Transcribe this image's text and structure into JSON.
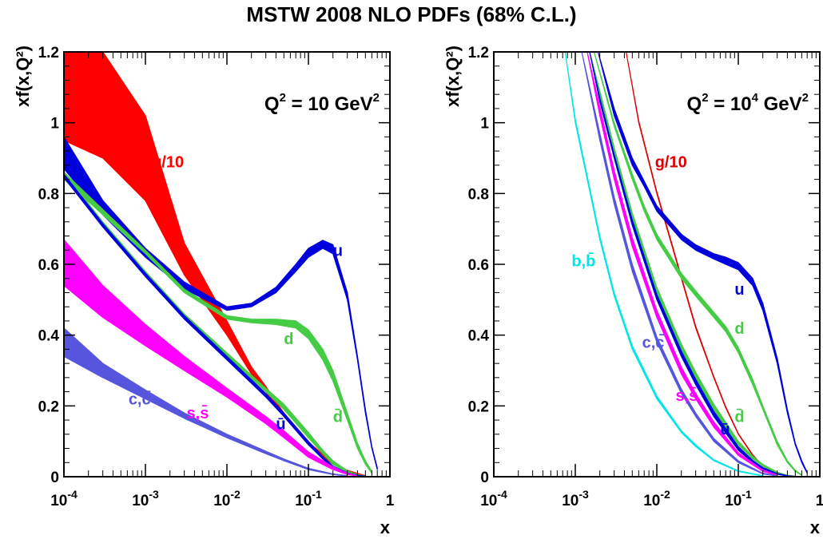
{
  "figure_title": "MSTW 2008 NLO PDFs (68% C.L.)",
  "chart_data": [
    {
      "type": "line",
      "xscale": "log",
      "xlim": [
        0.0001,
        1
      ],
      "ylim": [
        0,
        1.2
      ],
      "xlabel": "x",
      "ylabel": "xf(x,Q²)",
      "annotation": "Q² = 10 GeV²",
      "annotation_parts": {
        "base": "Q",
        "exp1": "2",
        "mid": " = 10 GeV",
        "exp2": "2"
      },
      "yticks": [
        "0",
        "0.2",
        "0.4",
        "0.6",
        "0.8",
        "1",
        "1.2"
      ],
      "xticks": [
        {
          "base": "10",
          "exp": "-4"
        },
        {
          "base": "10",
          "exp": "-3"
        },
        {
          "base": "10",
          "exp": "-2"
        },
        {
          "base": "10",
          "exp": "-1"
        },
        {
          "base": "1",
          "exp": ""
        }
      ],
      "series": [
        {
          "name": "g/10",
          "color": "#ff0000",
          "label_x": 0.0012,
          "label_y": 0.89,
          "x": [
            0.0001,
            0.0003,
            0.001,
            0.003,
            0.01,
            0.02,
            0.03,
            0.05,
            0.1,
            0.2,
            0.3,
            0.5
          ],
          "y_lo": [
            0.95,
            0.9,
            0.78,
            0.57,
            0.4,
            0.29,
            0.24,
            0.17,
            0.09,
            0.035,
            0.015,
            0.002
          ],
          "y_hi": [
            1.22,
            1.22,
            1.02,
            0.66,
            0.44,
            0.31,
            0.255,
            0.18,
            0.098,
            0.04,
            0.018,
            0.003
          ]
        },
        {
          "name": "u",
          "color": "#0000dd",
          "label_x": 0.2,
          "label_y": 0.64,
          "x": [
            0.0001,
            0.0003,
            0.001,
            0.003,
            0.01,
            0.02,
            0.04,
            0.07,
            0.1,
            0.15,
            0.2,
            0.3,
            0.4,
            0.5,
            0.6,
            0.7
          ],
          "y_lo": [
            0.87,
            0.74,
            0.62,
            0.53,
            0.47,
            0.48,
            0.52,
            0.58,
            0.62,
            0.645,
            0.63,
            0.5,
            0.33,
            0.18,
            0.08,
            0.02
          ],
          "y_hi": [
            0.96,
            0.78,
            0.645,
            0.55,
            0.48,
            0.49,
            0.535,
            0.6,
            0.645,
            0.668,
            0.655,
            0.52,
            0.34,
            0.19,
            0.085,
            0.025
          ]
        },
        {
          "name": "d",
          "color": "#44cc44",
          "label_x": 0.05,
          "label_y": 0.39,
          "x": [
            0.0001,
            0.0003,
            0.001,
            0.003,
            0.01,
            0.02,
            0.04,
            0.07,
            0.1,
            0.15,
            0.2,
            0.3,
            0.4,
            0.5,
            0.6
          ],
          "y_lo": [
            0.84,
            0.74,
            0.63,
            0.52,
            0.445,
            0.435,
            0.43,
            0.42,
            0.39,
            0.33,
            0.27,
            0.16,
            0.08,
            0.035,
            0.01
          ],
          "y_hi": [
            0.86,
            0.755,
            0.64,
            0.53,
            0.455,
            0.445,
            0.445,
            0.44,
            0.415,
            0.36,
            0.3,
            0.18,
            0.095,
            0.045,
            0.015
          ]
        },
        {
          "name": "d̄",
          "color": "#44cc44",
          "label_x": 0.2,
          "label_y": 0.17,
          "x": [
            0.0001,
            0.0003,
            0.001,
            0.003,
            0.01,
            0.03,
            0.05,
            0.1,
            0.15,
            0.2,
            0.3,
            0.4,
            0.5
          ],
          "y_lo": [
            0.85,
            0.71,
            0.57,
            0.45,
            0.34,
            0.24,
            0.19,
            0.11,
            0.065,
            0.035,
            0.012,
            0.004,
            0.001
          ],
          "y_hi": [
            0.86,
            0.72,
            0.58,
            0.46,
            0.35,
            0.25,
            0.205,
            0.125,
            0.075,
            0.045,
            0.017,
            0.006,
            0.002
          ]
        },
        {
          "name": "ū",
          "color": "#0000dd",
          "label_x": 0.04,
          "label_y": 0.15,
          "x": [
            0.0001,
            0.0003,
            0.001,
            0.003,
            0.01,
            0.03,
            0.05,
            0.1,
            0.15,
            0.2,
            0.3,
            0.4,
            0.5
          ],
          "y_lo": [
            0.845,
            0.705,
            0.565,
            0.445,
            0.33,
            0.225,
            0.17,
            0.09,
            0.05,
            0.025,
            0.008,
            0.003,
            0.001
          ],
          "y_hi": [
            0.855,
            0.715,
            0.575,
            0.455,
            0.34,
            0.235,
            0.18,
            0.1,
            0.056,
            0.03,
            0.011,
            0.004,
            0.0015
          ]
        },
        {
          "name": "s,s̄",
          "color": "#ff00ff",
          "label_x": 0.0032,
          "label_y": 0.18,
          "x": [
            0.0001,
            0.0003,
            0.001,
            0.003,
            0.01,
            0.03,
            0.05,
            0.1,
            0.2,
            0.3,
            0.4
          ],
          "y_lo": [
            0.54,
            0.45,
            0.37,
            0.3,
            0.225,
            0.15,
            0.11,
            0.055,
            0.02,
            0.006,
            0.002
          ],
          "y_hi": [
            0.67,
            0.54,
            0.43,
            0.34,
            0.25,
            0.17,
            0.13,
            0.07,
            0.028,
            0.01,
            0.003
          ]
        },
        {
          "name": "c,c̄",
          "color": "#5555dd",
          "label_x": 0.00062,
          "label_y": 0.22,
          "x": [
            0.0001,
            0.0003,
            0.001,
            0.003,
            0.01,
            0.03,
            0.05,
            0.1,
            0.2,
            0.3
          ],
          "y_lo": [
            0.34,
            0.28,
            0.22,
            0.165,
            0.11,
            0.065,
            0.045,
            0.02,
            0.006,
            0.002
          ],
          "y_hi": [
            0.42,
            0.32,
            0.245,
            0.18,
            0.12,
            0.072,
            0.05,
            0.024,
            0.008,
            0.003
          ]
        }
      ]
    },
    {
      "type": "line",
      "xscale": "log",
      "xlim": [
        0.0001,
        1
      ],
      "ylim": [
        0,
        1.2
      ],
      "xlabel": "x",
      "ylabel": "xf(x,Q²)",
      "annotation": "Q² = 10⁴ GeV²",
      "annotation_parts": {
        "base": "Q",
        "exp1": "2",
        "mid": " = 10",
        "exp2": "4",
        "mid2": " GeV",
        "exp3": "2"
      },
      "yticks": [
        "0",
        "0.2",
        "0.4",
        "0.6",
        "0.8",
        "1",
        "1.2"
      ],
      "xticks": [
        {
          "base": "10",
          "exp": "-4"
        },
        {
          "base": "10",
          "exp": "-3"
        },
        {
          "base": "10",
          "exp": "-2"
        },
        {
          "base": "10",
          "exp": "-1"
        },
        {
          "base": "1",
          "exp": ""
        }
      ],
      "series": [
        {
          "name": "g/10",
          "color": "#dd0000",
          "label_x": 0.0095,
          "label_y": 0.89,
          "x": [
            0.0042,
            0.006,
            0.01,
            0.015,
            0.02,
            0.03,
            0.05,
            0.07,
            0.1,
            0.15,
            0.2,
            0.3,
            0.4
          ],
          "y_lo": [
            1.2,
            1.0,
            0.8,
            0.66,
            0.56,
            0.42,
            0.28,
            0.195,
            0.12,
            0.06,
            0.03,
            0.008,
            0.002
          ],
          "y_hi": [
            1.2,
            1.005,
            0.805,
            0.665,
            0.565,
            0.425,
            0.283,
            0.198,
            0.122,
            0.062,
            0.031,
            0.009,
            0.0025
          ]
        },
        {
          "name": "u",
          "color": "#0000dd",
          "label_x": 0.09,
          "label_y": 0.53,
          "x": [
            0.0019,
            0.003,
            0.005,
            0.007,
            0.01,
            0.02,
            0.03,
            0.05,
            0.07,
            0.1,
            0.15,
            0.2,
            0.3,
            0.4,
            0.5,
            0.6,
            0.7
          ],
          "y_lo": [
            1.2,
            1.02,
            0.88,
            0.82,
            0.75,
            0.67,
            0.64,
            0.615,
            0.6,
            0.585,
            0.54,
            0.47,
            0.32,
            0.18,
            0.09,
            0.04,
            0.01
          ],
          "y_hi": [
            1.2,
            1.04,
            0.9,
            0.835,
            0.765,
            0.685,
            0.655,
            0.63,
            0.62,
            0.605,
            0.56,
            0.49,
            0.335,
            0.19,
            0.095,
            0.045,
            0.012
          ]
        },
        {
          "name": "d",
          "color": "#44cc44",
          "label_x": 0.09,
          "label_y": 0.42,
          "x": [
            0.0017,
            0.003,
            0.005,
            0.007,
            0.01,
            0.02,
            0.03,
            0.05,
            0.07,
            0.1,
            0.15,
            0.2,
            0.3,
            0.4,
            0.5,
            0.6
          ],
          "y_lo": [
            1.2,
            0.99,
            0.84,
            0.75,
            0.67,
            0.56,
            0.51,
            0.45,
            0.41,
            0.35,
            0.26,
            0.19,
            0.09,
            0.04,
            0.015,
            0.004
          ],
          "y_hi": [
            1.2,
            1.0,
            0.855,
            0.765,
            0.685,
            0.575,
            0.525,
            0.465,
            0.425,
            0.365,
            0.275,
            0.2,
            0.1,
            0.045,
            0.018,
            0.005
          ]
        },
        {
          "name": "d̄",
          "color": "#44cc44",
          "label_x": 0.09,
          "label_y": 0.17,
          "x": [
            0.0015,
            0.002,
            0.003,
            0.005,
            0.01,
            0.02,
            0.03,
            0.05,
            0.1,
            0.15,
            0.2,
            0.3,
            0.4,
            0.5
          ],
          "y_lo": [
            1.2,
            1.08,
            0.92,
            0.73,
            0.52,
            0.36,
            0.28,
            0.19,
            0.09,
            0.05,
            0.03,
            0.01,
            0.003,
            0.001
          ],
          "y_hi": [
            1.2,
            1.09,
            0.93,
            0.745,
            0.535,
            0.375,
            0.295,
            0.205,
            0.1,
            0.058,
            0.035,
            0.013,
            0.004,
            0.0015
          ]
        },
        {
          "name": "ū",
          "color": "#0000dd",
          "label_x": 0.06,
          "label_y": 0.135,
          "x": [
            0.0015,
            0.002,
            0.003,
            0.005,
            0.01,
            0.02,
            0.03,
            0.05,
            0.1,
            0.15,
            0.2,
            0.3,
            0.4,
            0.5
          ],
          "y_lo": [
            1.2,
            1.06,
            0.9,
            0.71,
            0.5,
            0.34,
            0.26,
            0.17,
            0.075,
            0.04,
            0.022,
            0.007,
            0.002,
            0.0005
          ],
          "y_hi": [
            1.2,
            1.07,
            0.91,
            0.725,
            0.515,
            0.355,
            0.275,
            0.185,
            0.085,
            0.046,
            0.026,
            0.009,
            0.003,
            0.001
          ]
        },
        {
          "name": "s,s̄",
          "color": "#ff00ff",
          "label_x": 0.017,
          "label_y": 0.23,
          "x": [
            0.0014,
            0.002,
            0.003,
            0.005,
            0.01,
            0.02,
            0.03,
            0.05,
            0.1,
            0.2,
            0.3
          ],
          "y_lo": [
            1.2,
            1.02,
            0.84,
            0.65,
            0.45,
            0.29,
            0.22,
            0.14,
            0.06,
            0.015,
            0.004
          ],
          "y_hi": [
            1.2,
            1.045,
            0.865,
            0.675,
            0.47,
            0.31,
            0.235,
            0.155,
            0.068,
            0.019,
            0.005
          ]
        },
        {
          "name": "c,c̄",
          "color": "#5555dd",
          "label_x": 0.0066,
          "label_y": 0.38,
          "x": [
            0.0012,
            0.002,
            0.003,
            0.005,
            0.01,
            0.02,
            0.03,
            0.05,
            0.1,
            0.2,
            0.3
          ],
          "y_lo": [
            1.2,
            0.95,
            0.77,
            0.58,
            0.38,
            0.235,
            0.17,
            0.1,
            0.04,
            0.008,
            0.002
          ],
          "y_hi": [
            1.2,
            0.97,
            0.79,
            0.6,
            0.395,
            0.248,
            0.18,
            0.108,
            0.045,
            0.01,
            0.003
          ]
        },
        {
          "name": "b,b̄",
          "color": "#00e5e5",
          "label_x": 0.0009,
          "label_y": 0.61,
          "x": [
            0.00075,
            0.001,
            0.002,
            0.003,
            0.005,
            0.01,
            0.02,
            0.03,
            0.05,
            0.1,
            0.2
          ],
          "y_lo": [
            1.2,
            1.0,
            0.67,
            0.51,
            0.36,
            0.22,
            0.125,
            0.085,
            0.045,
            0.015,
            0.002
          ],
          "y_hi": [
            1.2,
            1.01,
            0.68,
            0.52,
            0.37,
            0.228,
            0.13,
            0.09,
            0.048,
            0.017,
            0.003
          ]
        }
      ]
    }
  ]
}
